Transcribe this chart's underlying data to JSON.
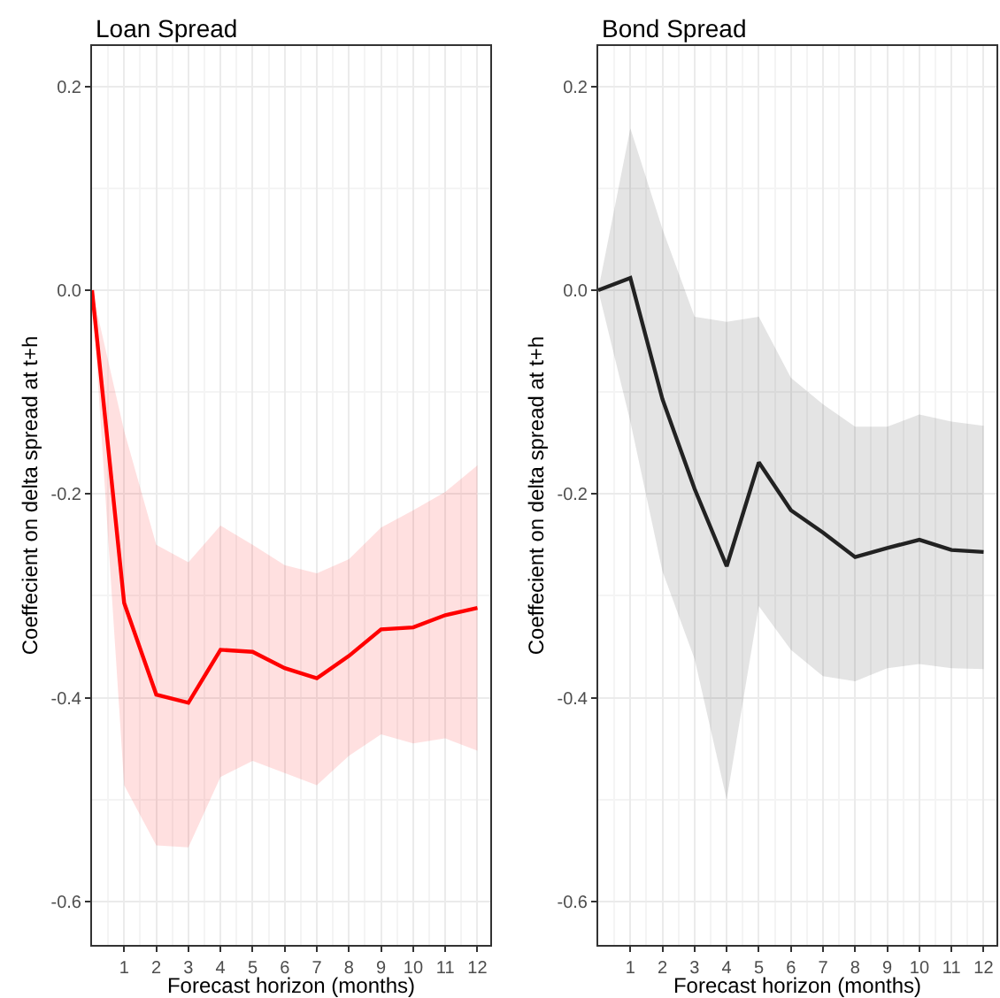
{
  "chart_data": [
    {
      "type": "line",
      "title": "Loan Spread",
      "xlabel": "Forecast horizon (months)",
      "ylabel": "Coeffecient on delta spread at t+h",
      "x": [
        0,
        1,
        2,
        3,
        4,
        5,
        6,
        7,
        8,
        9,
        10,
        11,
        12
      ],
      "series": [
        {
          "color": "#ff0000",
          "values": [
            0,
            -0.307,
            -0.397,
            -0.405,
            -0.353,
            -0.355,
            -0.371,
            -0.381,
            -0.359,
            -0.333,
            -0.331,
            -0.319,
            -0.312
          ],
          "upper": [
            0,
            -0.138,
            -0.25,
            -0.267,
            -0.231,
            -0.25,
            -0.27,
            -0.278,
            -0.264,
            -0.233,
            -0.216,
            -0.198,
            -0.172
          ],
          "lower": [
            0,
            -0.486,
            -0.545,
            -0.547,
            -0.478,
            -0.462,
            -0.474,
            -0.486,
            -0.457,
            -0.436,
            -0.445,
            -0.44,
            -0.452
          ]
        }
      ],
      "xlim": [
        0,
        12.4
      ],
      "xticks": [
        1,
        2,
        3,
        4,
        5,
        6,
        7,
        8,
        9,
        10,
        11,
        12
      ],
      "ylim": [
        -0.643,
        0.24
      ],
      "yticks": [
        {
          "value": 0.2,
          "label": "0.2"
        },
        {
          "value": 0,
          "label": "0.0"
        },
        {
          "value": -0.2,
          "label": "-0.2"
        },
        {
          "value": -0.4,
          "label": "-0.4"
        },
        {
          "value": -0.6,
          "label": "-0.6"
        }
      ],
      "grid": true,
      "marker": "none",
      "line_style": "solid"
    },
    {
      "type": "line",
      "title": "Bond Spread",
      "xlabel": "Forecast horizon (months)",
      "ylabel": "Coeffecient on delta spread at t+h",
      "x": [
        0,
        1,
        2,
        3,
        4,
        5,
        6,
        7,
        8,
        9,
        10,
        11,
        12
      ],
      "series": [
        {
          "color": "#222222",
          "values": [
            0,
            0.012,
            -0.107,
            -0.195,
            -0.271,
            -0.169,
            -0.216,
            -0.238,
            -0.262,
            -0.253,
            -0.245,
            -0.255,
            -0.257
          ],
          "upper": [
            0,
            0.159,
            0.06,
            -0.026,
            -0.031,
            -0.026,
            -0.086,
            -0.112,
            -0.134,
            -0.134,
            -0.122,
            -0.129,
            -0.133
          ],
          "lower": [
            0,
            -0.129,
            -0.276,
            -0.362,
            -0.5,
            -0.31,
            -0.353,
            -0.379,
            -0.384,
            -0.371,
            -0.367,
            -0.371,
            -0.372
          ]
        }
      ],
      "xlim": [
        0,
        12.4
      ],
      "xticks": [
        1,
        2,
        3,
        4,
        5,
        6,
        7,
        8,
        9,
        10,
        11,
        12
      ],
      "ylim": [
        -0.643,
        0.24
      ],
      "yticks": [
        {
          "value": 0.2,
          "label": "0.2"
        },
        {
          "value": 0,
          "label": "0.0"
        },
        {
          "value": -0.2,
          "label": "-0.2"
        },
        {
          "value": -0.4,
          "label": "-0.4"
        },
        {
          "value": -0.6,
          "label": "-0.6"
        }
      ],
      "grid": true,
      "marker": "none",
      "line_style": "solid"
    }
  ]
}
